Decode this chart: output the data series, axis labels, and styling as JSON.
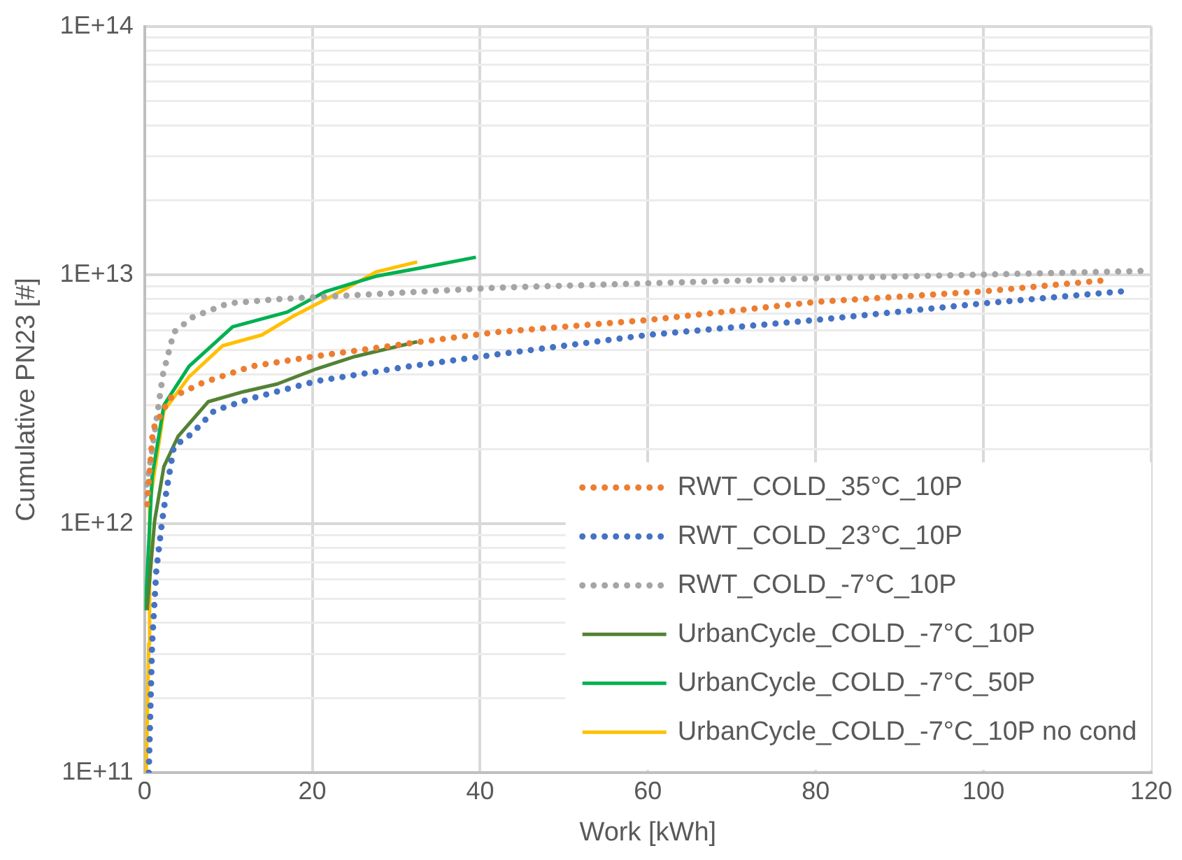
{
  "chart_data": {
    "type": "line",
    "xlabel": "Work [kWh]",
    "ylabel": "Cumulative PN23 [#]",
    "log": "y",
    "xlim": [
      0,
      120
    ],
    "xticks": [
      0,
      20,
      40,
      60,
      80,
      100,
      120
    ],
    "ylim": [
      100000000000.0,
      100000000000000.0
    ],
    "yticks": [
      {
        "value": 100000000000.0,
        "label": "1E+11"
      },
      {
        "value": 200000000000.0,
        "label": null
      },
      {
        "value": 300000000000.0,
        "label": null
      },
      {
        "value": 400000000000.0,
        "label": null
      },
      {
        "value": 500000000000.0,
        "label": null
      },
      {
        "value": 600000000000.0,
        "label": null
      },
      {
        "value": 700000000000.0,
        "label": null
      },
      {
        "value": 800000000000.0,
        "label": null
      },
      {
        "value": 900000000000.0,
        "label": null
      },
      {
        "value": 1000000000000.0,
        "label": "1E+12"
      },
      {
        "value": 2000000000000.0,
        "label": null
      },
      {
        "value": 3000000000000.0,
        "label": null
      },
      {
        "value": 4000000000000.0,
        "label": null
      },
      {
        "value": 5000000000000.0,
        "label": null
      },
      {
        "value": 6000000000000.0,
        "label": null
      },
      {
        "value": 7000000000000.0,
        "label": null
      },
      {
        "value": 8000000000000.0,
        "label": null
      },
      {
        "value": 9000000000000.0,
        "label": null
      },
      {
        "value": 10000000000000.0,
        "label": "1E+13"
      },
      {
        "value": 20000000000000.0,
        "label": null
      },
      {
        "value": 30000000000000.0,
        "label": null
      },
      {
        "value": 40000000000000.0,
        "label": null
      },
      {
        "value": 50000000000000.0,
        "label": null
      },
      {
        "value": 60000000000000.0,
        "label": null
      },
      {
        "value": 70000000000000.0,
        "label": null
      },
      {
        "value": 80000000000000.0,
        "label": null
      },
      {
        "value": 90000000000000.0,
        "label": null
      },
      {
        "value": 100000000000000.0,
        "label": "1E+14"
      }
    ],
    "grid": true,
    "legend": "bottom right",
    "marker": "none",
    "series": [
      {
        "name": "RWT_COLD_35°C_10P",
        "color": "#ed7d31",
        "line_style": "dotted",
        "x": [
          0.3,
          1,
          3,
          7,
          12.8,
          20,
          33,
          42,
          60,
          80,
          100,
          114
        ],
        "values": [
          1200000000000.0,
          2400000000000.0,
          3200000000000.0,
          3700000000000.0,
          4300000000000.0,
          4700000000000.0,
          5400000000000.0,
          5900000000000.0,
          6600000000000.0,
          7800000000000.0,
          8600000000000.0,
          9500000000000.0
        ]
      },
      {
        "name": "RWT_COLD_23°C_10P",
        "color": "#4472c4",
        "line_style": "dotted",
        "x": [
          0.5,
          0.9,
          1.4,
          2.1,
          2.6,
          3.5,
          5.6,
          8.3,
          12.8,
          20.5,
          31.6,
          42,
          60,
          80,
          100,
          116.5
        ],
        "values": [
          100000000000.0,
          330000000000.0,
          650000000000.0,
          1030000000000.0,
          1350000000000.0,
          2050000000000.0,
          2300000000000.0,
          2850000000000.0,
          3200000000000.0,
          3750000000000.0,
          4300000000000.0,
          4800000000000.0,
          5750000000000.0,
          6600000000000.0,
          7700000000000.0,
          8600000000000.0
        ]
      },
      {
        "name": "RWT_COLD_-7°C_10P",
        "color": "#a5a5a5",
        "line_style": "dotted",
        "x": [
          0,
          0.5,
          2.2,
          3.5,
          5.8,
          10,
          15.8,
          42,
          80,
          119.5
        ],
        "values": [
          1300000000000.0,
          1600000000000.0,
          4000000000000.0,
          5900000000000.0,
          6800000000000.0,
          7700000000000.0,
          8000000000000.0,
          8900000000000.0,
          9700000000000.0,
          10400000000000.0
        ]
      },
      {
        "name": "UrbanCycle_COLD_-7°C_10P",
        "color": "#548235",
        "line_style": "solid",
        "x": [
          0.3,
          1.2,
          2.3,
          4,
          7.6,
          11.8,
          15.8,
          20.5,
          25,
          32.5
        ],
        "values": [
          450000000000.0,
          1030000000000.0,
          1700000000000.0,
          2250000000000.0,
          3100000000000.0,
          3400000000000.0,
          3650000000000.0,
          4200000000000.0,
          4700000000000.0,
          5400000000000.0
        ]
      },
      {
        "name": "UrbanCycle_COLD_-7°C_50P",
        "color": "#00b050",
        "line_style": "solid",
        "x": [
          0.1,
          0.9,
          2.3,
          5.3,
          10.5,
          17,
          21.6,
          27.6,
          33,
          39.5
        ],
        "values": [
          450000000000.0,
          1550000000000.0,
          3000000000000.0,
          4300000000000.0,
          6200000000000.0,
          7100000000000.0,
          8600000000000.0,
          9900000000000.0,
          10700000000000.0,
          11800000000000.0
        ]
      },
      {
        "name": "UrbanCycle_COLD_-7°C_10P no cond",
        "color": "#ffc000",
        "line_style": "solid",
        "x": [
          0.2,
          0.5,
          0.6,
          2.3,
          5.3,
          9.3,
          14,
          17.6,
          23.4,
          27.6,
          32.5
        ],
        "values": [
          100000000000.0,
          330000000000.0,
          1200000000000.0,
          2850000000000.0,
          3900000000000.0,
          5200000000000.0,
          5750000000000.0,
          6800000000000.0,
          8600000000000.0,
          10300000000000.0,
          11300000000000.0
        ]
      }
    ]
  }
}
